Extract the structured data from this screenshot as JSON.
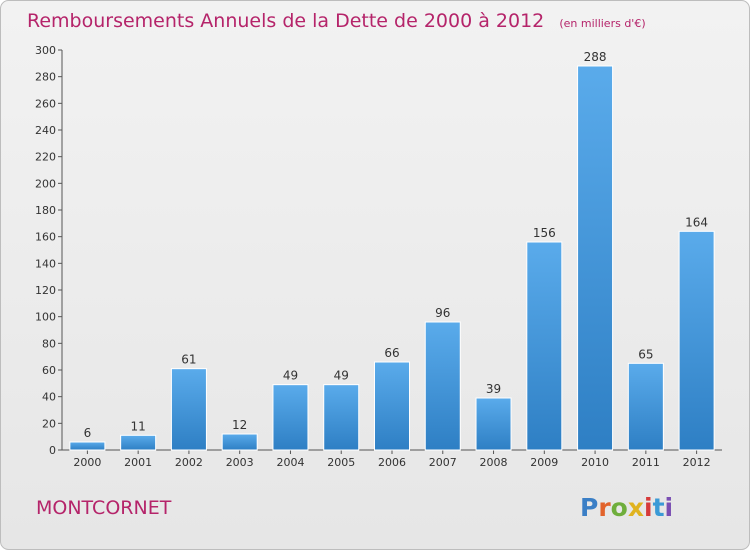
{
  "header": {
    "title": "Remboursements Annuels de la Dette de 2000 à 2012",
    "unit": "(en milliers d'€)"
  },
  "footer": {
    "town": "MONTCORNET",
    "logo_letters": [
      "P",
      "r",
      "o",
      "x",
      "i",
      "t",
      "i"
    ],
    "logo_colors": [
      "#3b7fc6",
      "#e2632b",
      "#6fae3c",
      "#e0b31f",
      "#d63a3a",
      "#3b9ad6",
      "#7a4fb3"
    ]
  },
  "colors": {
    "bar_light": "#5aabeb",
    "bar_dark": "#2e7fc4",
    "accent": "#b5246a"
  },
  "chart_data": {
    "type": "bar",
    "title": "Remboursements Annuels de la Dette de 2000 à 2012",
    "subtitle": "(en milliers d'€)",
    "categories": [
      "2000",
      "2001",
      "2002",
      "2003",
      "2004",
      "2005",
      "2006",
      "2007",
      "2008",
      "2009",
      "2010",
      "2011",
      "2012"
    ],
    "values": [
      6,
      11,
      61,
      12,
      49,
      49,
      66,
      96,
      39,
      156,
      288,
      65,
      164
    ],
    "ylim": [
      0,
      300
    ],
    "yticks": [
      0,
      20,
      40,
      60,
      80,
      100,
      120,
      140,
      160,
      180,
      200,
      220,
      240,
      260,
      280,
      300
    ],
    "grid": false,
    "legend": "none"
  }
}
